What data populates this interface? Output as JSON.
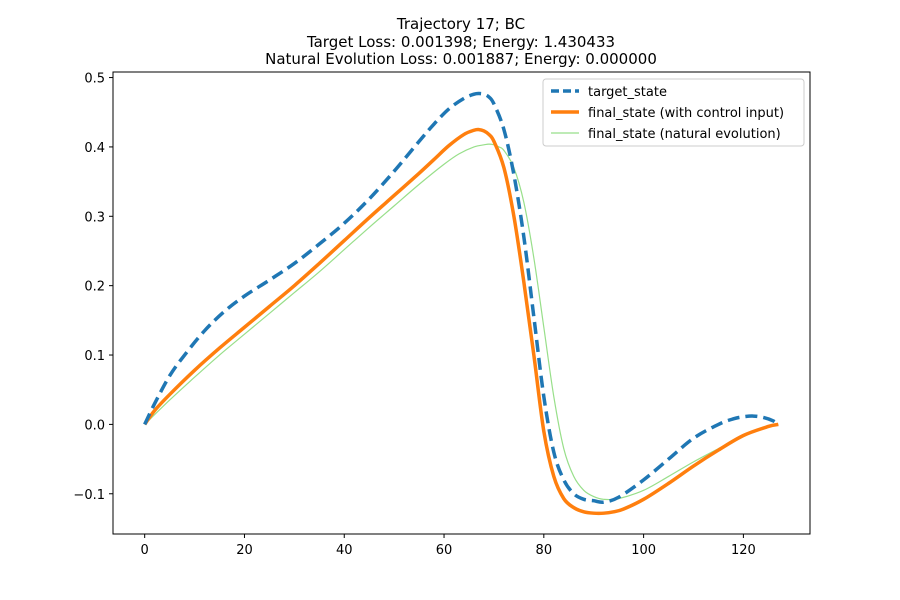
{
  "chart_data": {
    "type": "line",
    "title": "Trajectory 17; BC",
    "subtitle_lines": [
      "Target Loss: 0.001398; Energy: 1.430433",
      "Natural Evolution Loss: 0.001887; Energy: 0.000000"
    ],
    "xlabel": "",
    "ylabel": "",
    "xlim": [
      -6.35,
      133.35
    ],
    "ylim": [
      -0.158,
      0.508
    ],
    "xticks": [
      0,
      20,
      40,
      60,
      80,
      100,
      120
    ],
    "xtick_labels": [
      "0",
      "20",
      "40",
      "60",
      "80",
      "100",
      "120"
    ],
    "yticks": [
      -0.1,
      0.0,
      0.1,
      0.2,
      0.3,
      0.4,
      0.5
    ],
    "ytick_labels": [
      "−0.1",
      "0.0",
      "0.1",
      "0.2",
      "0.3",
      "0.4",
      "0.5"
    ],
    "grid": false,
    "legend_position": "top-right",
    "series": [
      {
        "name": "target_state",
        "color": "#1f77b4",
        "style": "dashed",
        "x": [
          0,
          2,
          5,
          8,
          12,
          16,
          20,
          25,
          30,
          35,
          40,
          45,
          50,
          55,
          58,
          61,
          64,
          66,
          67,
          68,
          69,
          70,
          72,
          74,
          76,
          78,
          80,
          82,
          84,
          86,
          88,
          90,
          92,
          95,
          100,
          105,
          110,
          115,
          118,
          120,
          122,
          124,
          126,
          127
        ],
        "y": [
          0.0,
          0.03,
          0.07,
          0.1,
          0.135,
          0.163,
          0.185,
          0.208,
          0.232,
          0.26,
          0.29,
          0.325,
          0.365,
          0.408,
          0.433,
          0.455,
          0.47,
          0.476,
          0.477,
          0.476,
          0.472,
          0.462,
          0.425,
          0.36,
          0.27,
          0.155,
          0.04,
          -0.04,
          -0.08,
          -0.1,
          -0.108,
          -0.11,
          -0.112,
          -0.105,
          -0.08,
          -0.05,
          -0.02,
          0.0,
          0.008,
          0.011,
          0.012,
          0.01,
          0.005,
          0.0
        ]
      },
      {
        "name": "final_state (with control input)",
        "color": "#ff7f0e",
        "style": "solid",
        "x": [
          0,
          2,
          5,
          10,
          15,
          20,
          25,
          30,
          35,
          40,
          45,
          50,
          55,
          58,
          61,
          64,
          66,
          67,
          68,
          69,
          70,
          72,
          74,
          76,
          78,
          80,
          82,
          84,
          86,
          88,
          90,
          92,
          94,
          96,
          100,
          105,
          110,
          115,
          120,
          125,
          127
        ],
        "y": [
          0.0,
          0.02,
          0.043,
          0.078,
          0.11,
          0.14,
          0.17,
          0.2,
          0.232,
          0.265,
          0.298,
          0.33,
          0.362,
          0.382,
          0.402,
          0.418,
          0.424,
          0.425,
          0.423,
          0.418,
          0.408,
          0.37,
          0.3,
          0.205,
          0.1,
          -0.01,
          -0.075,
          -0.107,
          -0.12,
          -0.126,
          -0.128,
          -0.128,
          -0.126,
          -0.122,
          -0.108,
          -0.085,
          -0.06,
          -0.037,
          -0.016,
          -0.003,
          0.0
        ]
      },
      {
        "name": "final_state (natural evolution)",
        "color": "#98df8a",
        "style": "solid-thin",
        "x": [
          0,
          5,
          10,
          15,
          20,
          25,
          30,
          35,
          40,
          45,
          50,
          55,
          60,
          63,
          66,
          68,
          69,
          70,
          71,
          72,
          74,
          76,
          78,
          80,
          82,
          84,
          86,
          88,
          90,
          92,
          95,
          100,
          105,
          110,
          115,
          120,
          125,
          127
        ],
        "y": [
          0.0,
          0.035,
          0.068,
          0.1,
          0.13,
          0.16,
          0.19,
          0.22,
          0.252,
          0.284,
          0.315,
          0.346,
          0.375,
          0.39,
          0.4,
          0.403,
          0.404,
          0.403,
          0.4,
          0.395,
          0.37,
          0.32,
          0.24,
          0.14,
          0.04,
          -0.035,
          -0.075,
          -0.095,
          -0.104,
          -0.108,
          -0.107,
          -0.095,
          -0.075,
          -0.054,
          -0.035,
          -0.017,
          -0.004,
          0.0
        ]
      }
    ]
  }
}
